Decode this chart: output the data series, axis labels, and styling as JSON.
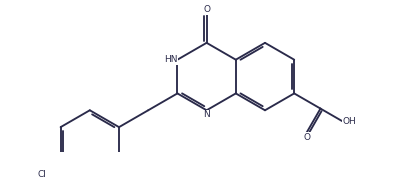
{
  "background_color": "#ffffff",
  "line_color": "#2a2a4a",
  "line_width": 1.35,
  "figsize": [
    4.12,
    1.77
  ],
  "dpi": 100,
  "label_fontsize": 6.5,
  "xlim": [
    0,
    10.5
  ],
  "ylim": [
    0,
    4.5
  ]
}
